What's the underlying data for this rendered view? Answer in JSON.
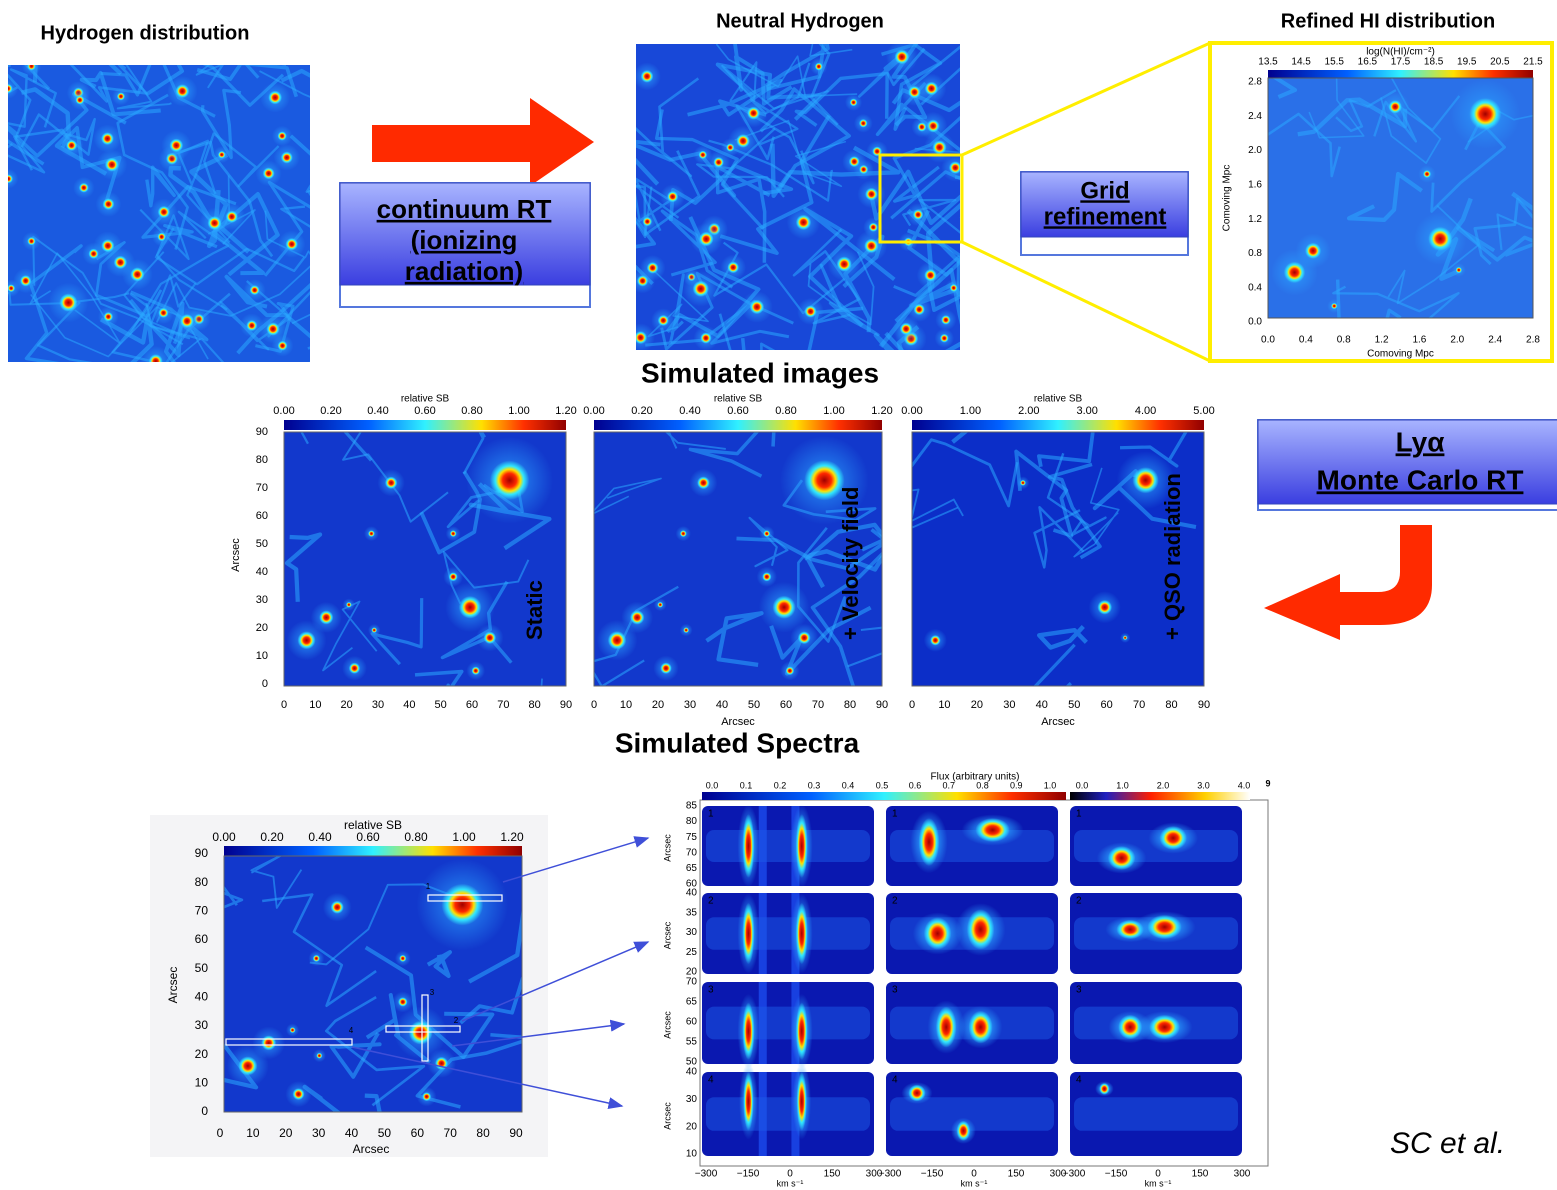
{
  "top": {
    "hydrogen_title": "Hydrogen distribution",
    "neutral_title": "Neutral Hydrogen",
    "refined_title": "Refined HI distribution"
  },
  "boxes": {
    "continuum": [
      "continuum RT",
      "(ionizing",
      "radiation)"
    ],
    "grid": [
      "Grid",
      "refinement"
    ],
    "lya": [
      "Lyα",
      "Monte Carlo RT"
    ]
  },
  "refined_panel": {
    "colorbar_label": "log(N(HI)/cm⁻²)",
    "colorbar_ticks": [
      "13.5",
      "14.5",
      "15.5",
      "16.5",
      "17.5",
      "18.5",
      "19.5",
      "20.5",
      "21.5"
    ],
    "yticks": [
      "0.0",
      "0.4",
      "0.8",
      "1.2",
      "1.6",
      "2.0",
      "2.4",
      "2.8"
    ],
    "ylabel": "Comoving Mpc",
    "xticks": [
      "0.0",
      "0.4",
      "0.8",
      "1.2",
      "1.6",
      "2.0",
      "2.4",
      "2.8"
    ],
    "xlabel": "Comoving Mpc"
  },
  "images": {
    "title": "Simulated images",
    "ylabel": "Arcsec",
    "yticks": [
      "0",
      "10",
      "20",
      "30",
      "40",
      "50",
      "60",
      "70",
      "80",
      "90"
    ],
    "panels": [
      {
        "colorbar_label": "relative SB",
        "colorbar_ticks": [
          "0.00",
          "0.20",
          "0.40",
          "0.60",
          "0.80",
          "1.00",
          "1.20"
        ],
        "xticks": [
          "0",
          "10",
          "20",
          "30",
          "40",
          "50",
          "60",
          "70",
          "80",
          "90"
        ],
        "annotation": "Static"
      },
      {
        "colorbar_label": "relative SB",
        "colorbar_ticks": [
          "0.00",
          "0.20",
          "0.40",
          "0.60",
          "0.80",
          "1.00",
          "1.20"
        ],
        "xticks": [
          "0",
          "10",
          "20",
          "30",
          "40",
          "50",
          "60",
          "70",
          "80",
          "90"
        ],
        "xlabel": "Arcsec",
        "annotation": "+ Velocity field"
      },
      {
        "colorbar_label": "relative SB",
        "colorbar_ticks": [
          "0.00",
          "1.00",
          "2.00",
          "3.00",
          "4.00",
          "5.00"
        ],
        "xticks": [
          "0",
          "10",
          "20",
          "30",
          "40",
          "50",
          "60",
          "70",
          "80",
          "90"
        ],
        "xlabel": "Arcsec",
        "annotation": "+ QSO radiation"
      }
    ]
  },
  "spectra": {
    "title": "Simulated Spectra",
    "map": {
      "colorbar_label": "relative SB",
      "colorbar_ticks": [
        "0.00",
        "0.20",
        "0.40",
        "0.60",
        "0.80",
        "1.00",
        "1.20"
      ],
      "yticks": [
        "0",
        "10",
        "20",
        "30",
        "40",
        "50",
        "60",
        "70",
        "80",
        "90"
      ],
      "xticks": [
        "0",
        "10",
        "20",
        "30",
        "40",
        "50",
        "60",
        "70",
        "80",
        "90"
      ],
      "ylabel": "Arcsec",
      "xlabel": "Arcsec",
      "slits": [
        "1",
        "2",
        "3",
        "4"
      ]
    },
    "grid": {
      "colorbar_label": "Flux  (arbitrary  units)",
      "colorbar_ticks": [
        [
          "0.0",
          "0.1",
          "0.2",
          "0.3",
          "0.4",
          "0.5"
        ],
        [
          "0.6",
          "0.7",
          "0.8",
          "0.9",
          "1.0"
        ],
        [
          "0.0",
          "1.0",
          "2.0",
          "3.0",
          "4.0"
        ]
      ],
      "colorbar_extra": "9",
      "ylabel": "Arcsec",
      "rows": [
        {
          "label": "1",
          "yticks": [
            "60",
            "65",
            "70",
            "75",
            "80",
            "85"
          ]
        },
        {
          "label": "2",
          "yticks": [
            "20",
            "25",
            "30",
            "35",
            "40"
          ]
        },
        {
          "label": "3",
          "yticks": [
            "50",
            "55",
            "60",
            "65",
            "70"
          ]
        },
        {
          "label": "4",
          "yticks": [
            "10",
            "20",
            "30",
            "40"
          ]
        }
      ],
      "xticks": [
        "−300",
        "−150",
        "0",
        "150",
        "300"
      ],
      "xlabel": "km  s⁻¹"
    }
  },
  "citation": "SC et al. "
}
